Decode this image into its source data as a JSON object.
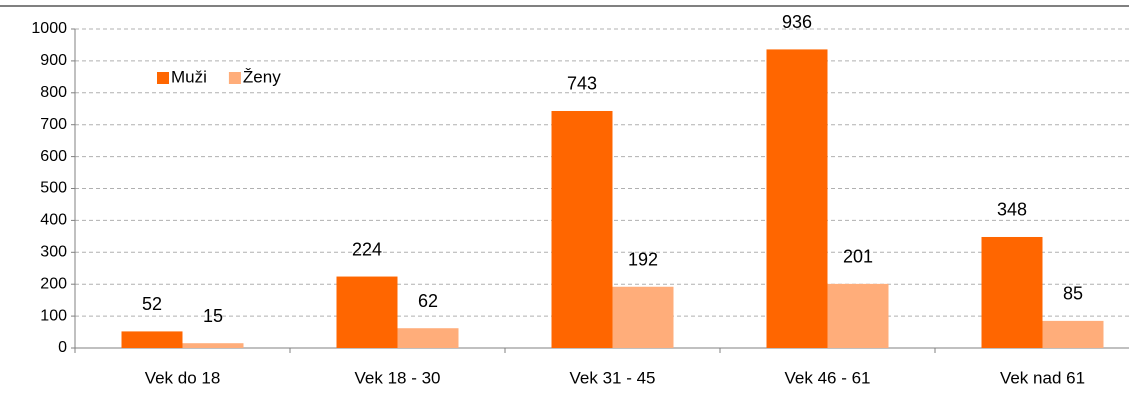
{
  "chart_data": {
    "type": "bar",
    "categories": [
      "Vek do 18",
      "Vek 18 - 30",
      "Vek 31 - 45",
      "Vek 46 - 61",
      "Vek nad 61"
    ],
    "series": [
      {
        "name": "Muži",
        "color": "#ff6600",
        "values": [
          52,
          224,
          743,
          936,
          348
        ]
      },
      {
        "name": "Ženy",
        "color": "#ffad7a",
        "values": [
          15,
          62,
          192,
          201,
          85
        ]
      }
    ],
    "ylim": [
      0,
      1000
    ],
    "yticks": [
      0,
      100,
      200,
      300,
      400,
      500,
      600,
      700,
      800,
      900,
      1000
    ],
    "grid": true,
    "legend": "top-left"
  }
}
